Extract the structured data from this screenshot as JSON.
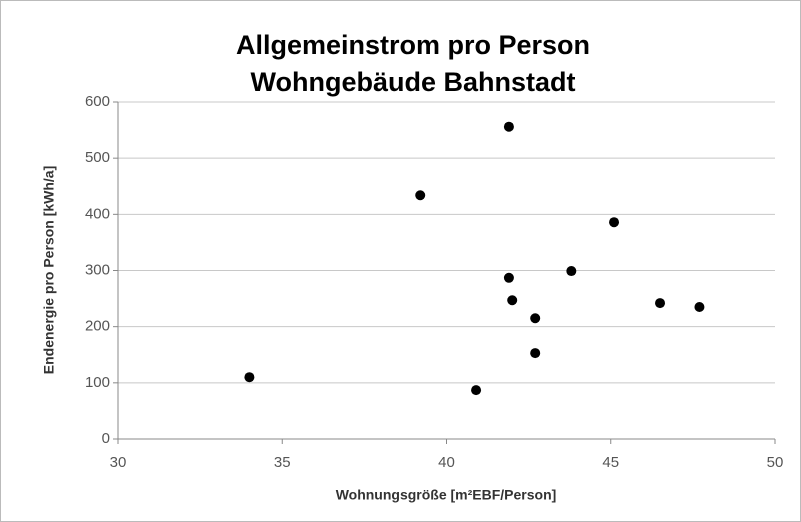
{
  "chart_data": {
    "type": "scatter",
    "title": [
      "Allgemeinstrom pro Person",
      "Wohngebäude Bahnstadt"
    ],
    "x_label": "Wohnungsgröße [m²EBF/Person]",
    "y_label": "Endenergie pro Person [kWh/a]",
    "color": "#000000",
    "x": [
      34.0,
      39.2,
      40.9,
      41.9,
      41.9,
      42.0,
      42.7,
      42.7,
      43.8,
      45.1,
      46.5,
      47.7
    ],
    "values": [
      110,
      434,
      87,
      556,
      287,
      247,
      215,
      153,
      299,
      386,
      242,
      235
    ],
    "xlim": [
      30,
      50
    ],
    "xticks": [
      30,
      35,
      40,
      45,
      50
    ],
    "ylim": [
      0,
      600
    ],
    "yticks": [
      0,
      100,
      200,
      300,
      400,
      500,
      600
    ],
    "grid": true
  }
}
